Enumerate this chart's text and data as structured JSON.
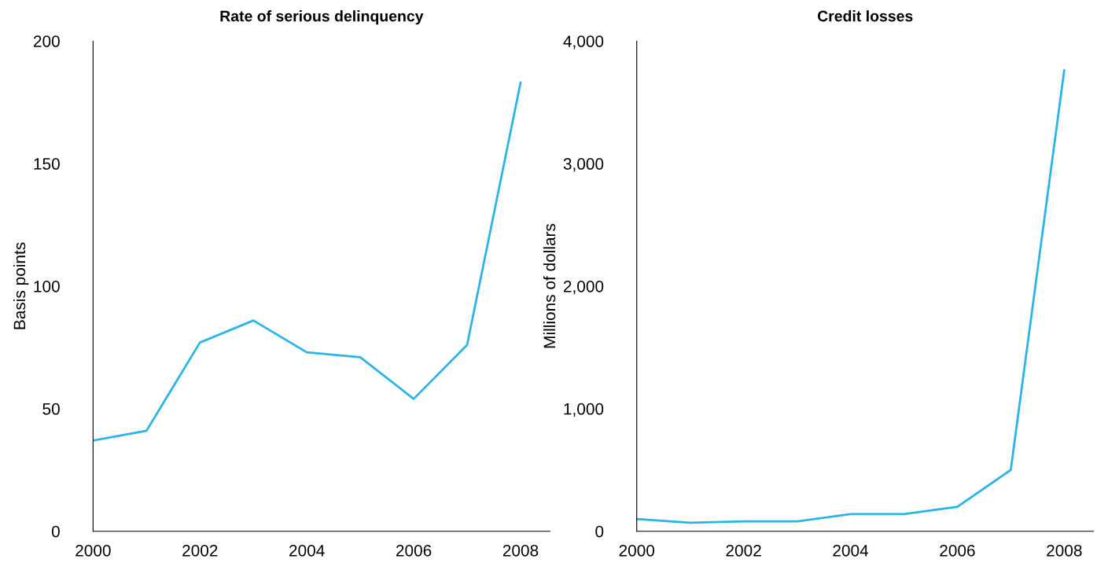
{
  "chart_data": [
    {
      "type": "line",
      "title": "Rate of serious delinquency",
      "ylabel": "Basis points",
      "x": [
        2000,
        2001,
        2002,
        2003,
        2004,
        2005,
        2006,
        2007,
        2008
      ],
      "series": [
        {
          "color": "#29b5e8",
          "values": [
            37,
            41,
            77,
            86,
            73,
            71,
            54,
            76,
            183
          ]
        }
      ],
      "xlim": [
        2000,
        2008.55
      ],
      "xticks": [
        2000,
        2002,
        2004,
        2006,
        2008
      ],
      "ylim": [
        0,
        200
      ],
      "yticks": [
        0,
        50,
        100,
        150,
        200
      ],
      "grid": false,
      "legend": false
    },
    {
      "type": "line",
      "title": "Credit losses",
      "ylabel": "Millions of dollars",
      "x": [
        2000,
        2001,
        2002,
        2003,
        2004,
        2005,
        2006,
        2007,
        2008
      ],
      "series": [
        {
          "color": "#29b5e8",
          "values": [
            100,
            70,
            80,
            80,
            140,
            140,
            200,
            500,
            3760
          ]
        }
      ],
      "xlim": [
        2000,
        2008.55
      ],
      "xticks": [
        2000,
        2002,
        2004,
        2006,
        2008
      ],
      "ylim": [
        0,
        4000
      ],
      "yticks": [
        0,
        {
          "value": 1000,
          "label": "1,000"
        },
        {
          "value": 2000,
          "label": "2,000"
        },
        {
          "value": 3000,
          "label": "3,000"
        },
        {
          "value": 4000,
          "label": "4,000"
        }
      ],
      "grid": false,
      "legend": false
    }
  ]
}
